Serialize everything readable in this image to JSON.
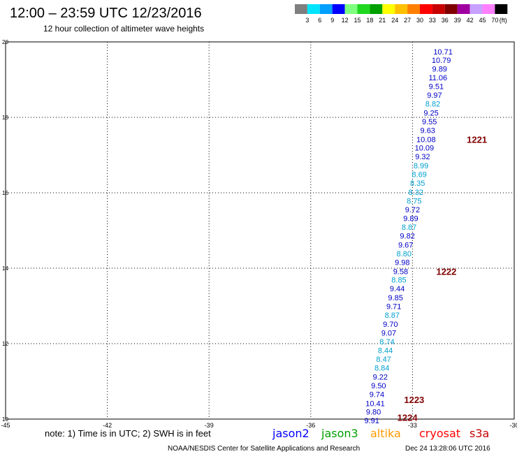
{
  "header": {
    "title": "12:00 – 23:59 UTC 12/23/2016",
    "subtitle": "12 hour collection of altimeter wave heights"
  },
  "colorbar": {
    "colors": [
      "#7f7f7f",
      "#00e5ff",
      "#00a0ff",
      "#0000ff",
      "#7fff7f",
      "#20d820",
      "#00a000",
      "#ffff00",
      "#ffc000",
      "#ff8000",
      "#ff0000",
      "#c80000",
      "#800000",
      "#a000a0",
      "#c8a0ff",
      "#ff80ff",
      "#000000"
    ],
    "labels": [
      "3",
      "6",
      "9",
      "12",
      "15",
      "18",
      "21",
      "24",
      "27",
      "30",
      "33",
      "36",
      "39",
      "42",
      "45",
      "70"
    ],
    "unit": "(ft)"
  },
  "chart_data": {
    "type": "scatter",
    "xlim": [
      -45,
      -30
    ],
    "ylim": [
      10,
      20
    ],
    "xticks": [
      "-45",
      "-42",
      "-39",
      "-36",
      "-33",
      "-30"
    ],
    "yticks": [
      "10",
      "12",
      "14",
      "16",
      "18",
      "20"
    ],
    "grid": true,
    "points": [
      {
        "lon": -32.1,
        "lat": 19.74,
        "label": "10.71",
        "sat": "jason2"
      },
      {
        "lon": -32.15,
        "lat": 19.52,
        "label": "10.79",
        "sat": "jason2"
      },
      {
        "lon": -32.2,
        "lat": 19.29,
        "label": "9.89",
        "sat": "jason2"
      },
      {
        "lon": -32.25,
        "lat": 19.06,
        "label": "11.06",
        "sat": "jason2"
      },
      {
        "lon": -32.3,
        "lat": 18.82,
        "label": "9.51",
        "sat": "jason2"
      },
      {
        "lon": -32.35,
        "lat": 18.59,
        "label": "9.97",
        "sat": "jason2"
      },
      {
        "lon": -32.4,
        "lat": 18.36,
        "label": "8.82",
        "sat": "cyan"
      },
      {
        "lon": -32.45,
        "lat": 18.12,
        "label": "9.25",
        "sat": "jason2"
      },
      {
        "lon": -32.5,
        "lat": 17.89,
        "label": "9.55",
        "sat": "jason2"
      },
      {
        "lon": -32.55,
        "lat": 17.66,
        "label": "9.63",
        "sat": "jason2"
      },
      {
        "lon": -32.6,
        "lat": 17.42,
        "label": "10.08",
        "sat": "jason2"
      },
      {
        "lon": -32.65,
        "lat": 17.19,
        "label": "10.09",
        "sat": "jason2"
      },
      {
        "lon": -32.7,
        "lat": 16.96,
        "label": "9.32",
        "sat": "jason2"
      },
      {
        "lon": -32.75,
        "lat": 16.72,
        "label": "8.99",
        "sat": "cyan"
      },
      {
        "lon": -32.8,
        "lat": 16.49,
        "label": "8.69",
        "sat": "cyan"
      },
      {
        "lon": -32.85,
        "lat": 16.26,
        "label": "8.35",
        "sat": "cyan"
      },
      {
        "lon": -32.9,
        "lat": 16.02,
        "label": "8.32",
        "sat": "cyan"
      },
      {
        "lon": -32.95,
        "lat": 15.79,
        "label": "8.75",
        "sat": "cyan"
      },
      {
        "lon": -33.0,
        "lat": 15.56,
        "label": "9.72",
        "sat": "jason2"
      },
      {
        "lon": -33.05,
        "lat": 15.32,
        "label": "9.89",
        "sat": "jason2"
      },
      {
        "lon": -33.1,
        "lat": 15.09,
        "label": "8.87",
        "sat": "cyan"
      },
      {
        "lon": -33.15,
        "lat": 14.86,
        "label": "9.82",
        "sat": "jason2"
      },
      {
        "lon": -33.2,
        "lat": 14.62,
        "label": "9.67",
        "sat": "jason2"
      },
      {
        "lon": -33.25,
        "lat": 14.39,
        "label": "8.80",
        "sat": "cyan"
      },
      {
        "lon": -33.3,
        "lat": 14.16,
        "label": "9.98",
        "sat": "jason2"
      },
      {
        "lon": -33.35,
        "lat": 13.92,
        "label": "9.58",
        "sat": "jason2"
      },
      {
        "lon": -33.4,
        "lat": 13.69,
        "label": "8.85",
        "sat": "cyan"
      },
      {
        "lon": -33.45,
        "lat": 13.46,
        "label": "9.44",
        "sat": "jason2"
      },
      {
        "lon": -33.5,
        "lat": 13.22,
        "label": "9.85",
        "sat": "jason2"
      },
      {
        "lon": -33.55,
        "lat": 12.99,
        "label": "9.71",
        "sat": "jason2"
      },
      {
        "lon": -33.6,
        "lat": 12.76,
        "label": "8.87",
        "sat": "cyan"
      },
      {
        "lon": -33.65,
        "lat": 12.52,
        "label": "9.70",
        "sat": "jason2"
      },
      {
        "lon": -33.7,
        "lat": 12.29,
        "label": "9.07",
        "sat": "jason2"
      },
      {
        "lon": -33.75,
        "lat": 12.06,
        "label": "8.74",
        "sat": "cyan"
      },
      {
        "lon": -33.8,
        "lat": 11.82,
        "label": "8.44",
        "sat": "cyan"
      },
      {
        "lon": -33.85,
        "lat": 11.59,
        "label": "8.47",
        "sat": "cyan"
      },
      {
        "lon": -33.9,
        "lat": 11.36,
        "label": "8.84",
        "sat": "cyan"
      },
      {
        "lon": -33.95,
        "lat": 11.12,
        "label": "9.22",
        "sat": "jason2"
      },
      {
        "lon": -34.0,
        "lat": 10.89,
        "label": "9.50",
        "sat": "jason2"
      },
      {
        "lon": -34.05,
        "lat": 10.66,
        "label": "9.74",
        "sat": "jason2"
      },
      {
        "lon": -34.1,
        "lat": 10.42,
        "label": "10.41",
        "sat": "jason2"
      },
      {
        "lon": -34.15,
        "lat": 10.19,
        "label": "9.80",
        "sat": "jason2"
      },
      {
        "lon": -34.2,
        "lat": 9.96,
        "label": "9.91",
        "sat": "jason2"
      }
    ],
    "time_labels": [
      {
        "lon": -31.1,
        "lat": 17.42,
        "label": "1221"
      },
      {
        "lon": -32.0,
        "lat": 13.92,
        "label": "1222"
      },
      {
        "lon": -32.95,
        "lat": 10.52,
        "label": "1223"
      },
      {
        "lon": -33.15,
        "lat": 10.05,
        "label": "1224"
      }
    ],
    "sat_colors": {
      "jason2": "#0000c8",
      "cyan": "#00a0d0"
    }
  },
  "footer": {
    "note": "note: 1) Time is in UTC; 2) SWH is in feet",
    "legend": [
      {
        "name": "jason2",
        "color": "#0000ff"
      },
      {
        "name": "jason3",
        "color": "#00a000"
      },
      {
        "name": "altika",
        "color": "#ff9900"
      },
      {
        "name": "cryosat",
        "color": "#ff0000"
      },
      {
        "name": "s3a",
        "color": "#c80000"
      }
    ],
    "credit": "NOAA/NESDIS Center for Satellite Applications and Research",
    "timestamp": "Dec 24 13:28:06 UTC 2016"
  }
}
